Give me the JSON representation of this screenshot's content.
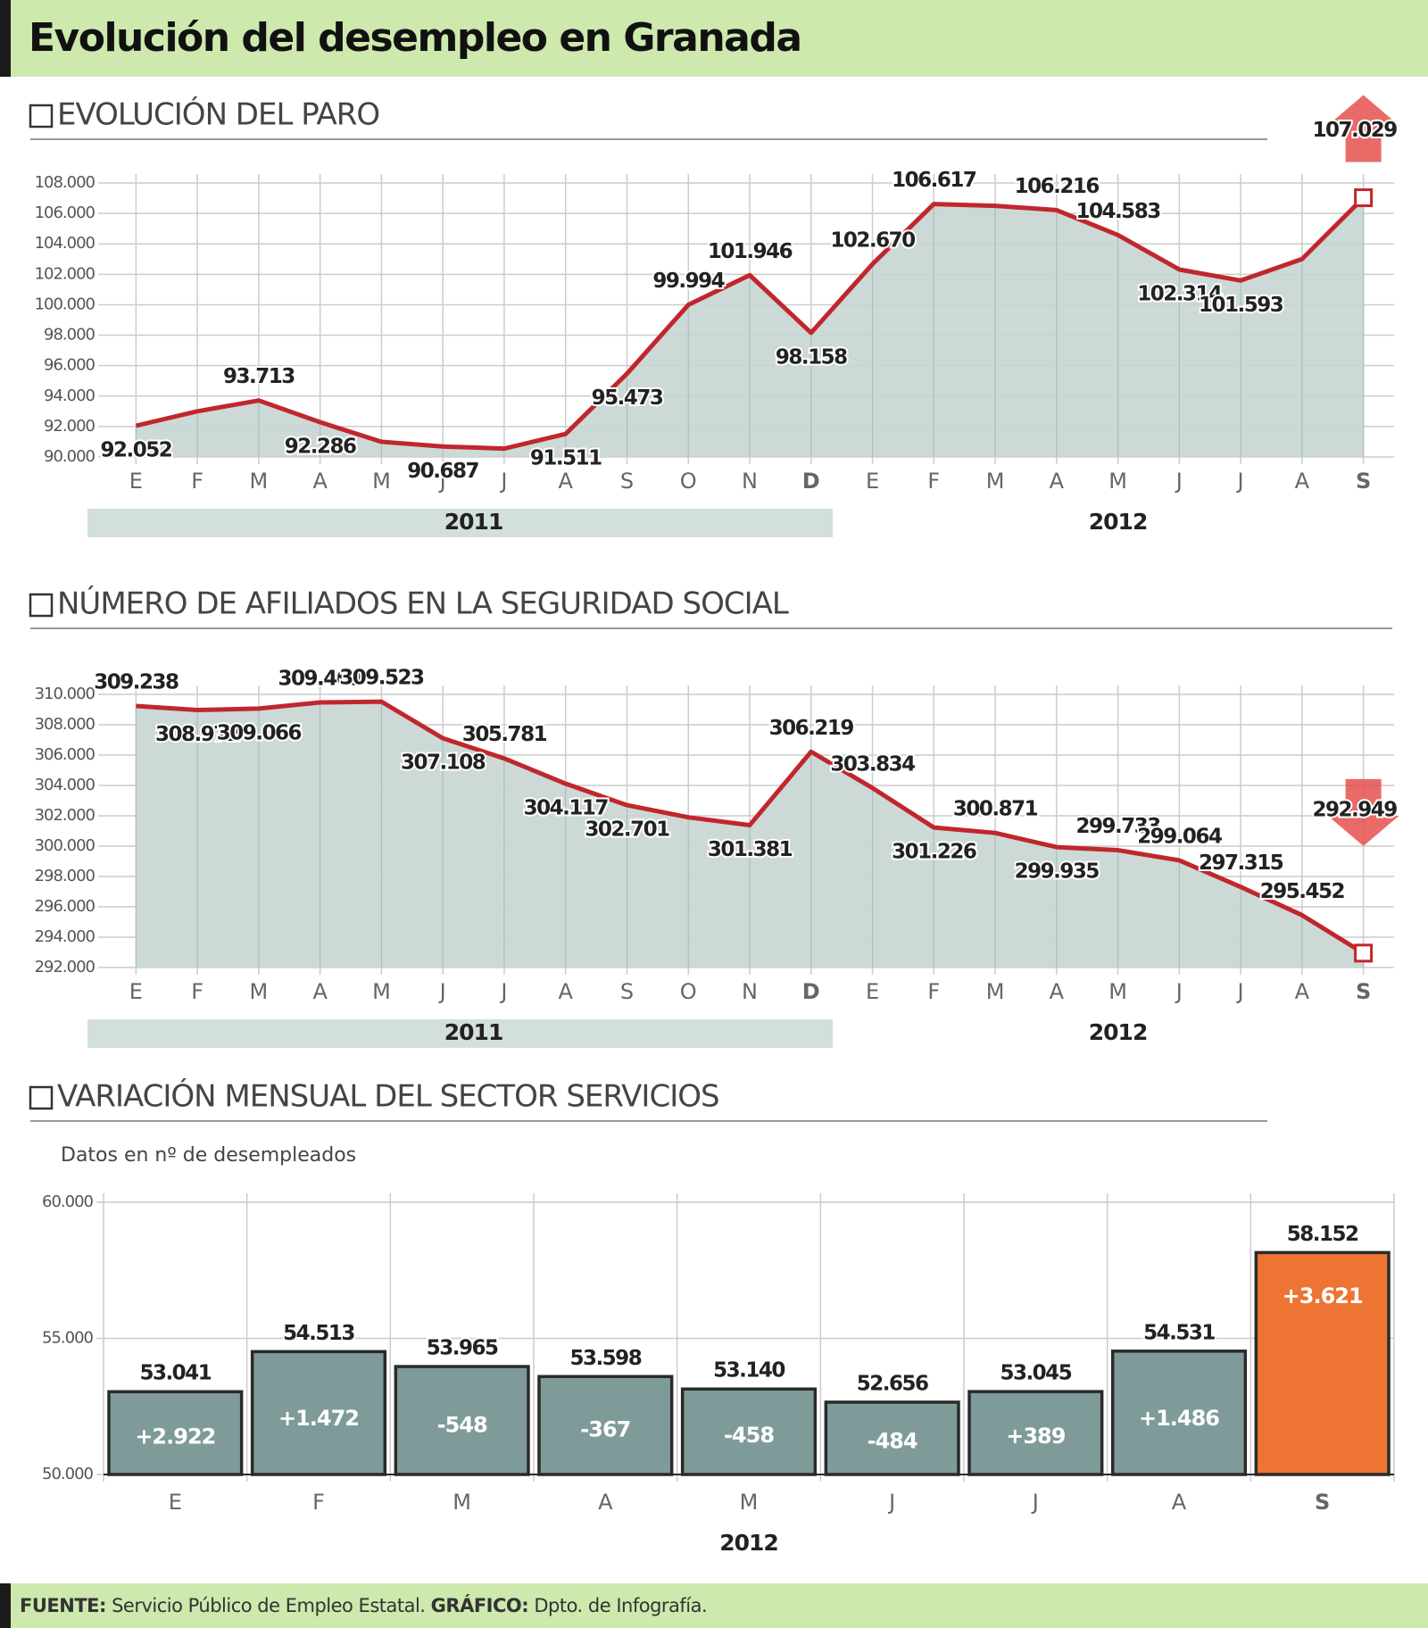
{
  "title": "Evolución del desempleo en Granada",
  "chart_data": [
    {
      "type": "area",
      "title": "EVOLUCIÓN DEL PARO",
      "categories": [
        "E",
        "F",
        "M",
        "A",
        "M",
        "J",
        "J",
        "A",
        "S",
        "O",
        "N",
        "D",
        "E",
        "F",
        "M",
        "A",
        "M",
        "J",
        "J",
        "A",
        "S"
      ],
      "values": [
        92052,
        93000,
        93713,
        92286,
        91000,
        90687,
        90550,
        91511,
        95473,
        99994,
        101946,
        98158,
        102670,
        106617,
        106500,
        106216,
        104583,
        102314,
        101593,
        103000,
        107029
      ],
      "value_labels": [
        "92.052",
        null,
        "93.713",
        "92.286",
        null,
        "90.687",
        null,
        "91.511",
        "95.473",
        "99.994",
        "101.946",
        "98.158",
        "102.670",
        "106.617",
        null,
        "106.216",
        "104.583",
        "102.314",
        "101.593",
        null,
        "107.029"
      ],
      "years": [
        {
          "label": "2011",
          "months": 12
        },
        {
          "label": "2012",
          "months": 9
        }
      ],
      "ylim": [
        90000,
        108000
      ],
      "yticks": [
        {
          "value": 90000,
          "label": "90.000"
        },
        {
          "value": 92000,
          "label": "92.000"
        },
        {
          "value": 94000,
          "label": "94.000"
        },
        {
          "value": 96000,
          "label": "96.000"
        },
        {
          "value": 98000,
          "label": "98.000"
        },
        {
          "value": 100000,
          "label": "100.000"
        },
        {
          "value": 102000,
          "label": "102.000"
        },
        {
          "value": 104000,
          "label": "104.000"
        },
        {
          "value": 106000,
          "label": "106.000"
        },
        {
          "value": 108000,
          "label": "108.000"
        }
      ],
      "color": "#c0272d",
      "fill": "#c6d5d3",
      "trend": "up",
      "grid": true
    },
    {
      "type": "area",
      "title": "NÚMERO DE AFILIADOS EN LA SEGURIDAD SOCIAL",
      "categories": [
        "E",
        "F",
        "M",
        "A",
        "M",
        "J",
        "J",
        "A",
        "S",
        "O",
        "N",
        "D",
        "E",
        "F",
        "M",
        "A",
        "M",
        "J",
        "J",
        "A",
        "S"
      ],
      "values": [
        309238,
        308972,
        309066,
        309469,
        309523,
        307108,
        305781,
        304117,
        302701,
        301900,
        301381,
        306219,
        303834,
        301226,
        300871,
        299935,
        299733,
        299064,
        297315,
        295452,
        292949
      ],
      "value_labels": [
        "309.238",
        "308.972",
        "309.066",
        "309.469",
        "309.523",
        "307.108",
        "305.781",
        "304.117",
        "302.701",
        null,
        "301.381",
        "306.219",
        "303.834",
        "301.226",
        "300.871",
        "299.935",
        "299.733",
        "299.064",
        "297.315",
        "295.452",
        "292.949"
      ],
      "years": [
        {
          "label": "2011",
          "months": 12
        },
        {
          "label": "2012",
          "months": 9
        }
      ],
      "ylim": [
        292000,
        310000
      ],
      "yticks": [
        {
          "value": 292000,
          "label": "292.000"
        },
        {
          "value": 294000,
          "label": "294.000"
        },
        {
          "value": 296000,
          "label": "296.000"
        },
        {
          "value": 298000,
          "label": "298.000"
        },
        {
          "value": 300000,
          "label": "300.000"
        },
        {
          "value": 302000,
          "label": "302.000"
        },
        {
          "value": 304000,
          "label": "304.000"
        },
        {
          "value": 306000,
          "label": "306.000"
        },
        {
          "value": 308000,
          "label": "308.000"
        },
        {
          "value": 310000,
          "label": "310.000"
        }
      ],
      "color": "#c0272d",
      "fill": "#c6d5d3",
      "trend": "down",
      "grid": true
    },
    {
      "type": "bar",
      "title": "VARIACIÓN MENSUAL DEL SECTOR SERVICIOS",
      "subtitle": "Datos en nº de desempleados",
      "categories": [
        "E",
        "F",
        "M",
        "A",
        "M",
        "J",
        "J",
        "A",
        "S"
      ],
      "values": [
        53041,
        54513,
        53965,
        53598,
        53140,
        52656,
        53045,
        54531,
        58152
      ],
      "value_labels": [
        "53.041",
        "54.513",
        "53.965",
        "53.598",
        "53.140",
        "52.656",
        "53.045",
        "54.531",
        "58.152"
      ],
      "changes": [
        2922,
        1472,
        -548,
        -367,
        -458,
        -484,
        389,
        1486,
        3621
      ],
      "change_labels": [
        "+2.922",
        "+1.472",
        "-548",
        "-367",
        "-458",
        "-484",
        "+389",
        "+1.486",
        "+3.621"
      ],
      "years": [
        {
          "label": "2012",
          "months": 9
        }
      ],
      "ylim": [
        50000,
        60000
      ],
      "yticks": [
        {
          "value": 50000,
          "label": "50.000"
        },
        {
          "value": 55000,
          "label": "55.000"
        },
        {
          "value": 60000,
          "label": "60.000"
        }
      ],
      "colors": [
        "#7e9b99",
        "#7e9b99",
        "#7e9b99",
        "#7e9b99",
        "#7e9b99",
        "#7e9b99",
        "#7e9b99",
        "#7e9b99",
        "#ee7434"
      ],
      "grid": true
    }
  ],
  "footer": {
    "source_label": "FUENTE:",
    "source": "Servicio Público de Empleo Estatal.",
    "credit_label": "GRÁFICO:",
    "credit": "Dpto. de Infografía."
  }
}
